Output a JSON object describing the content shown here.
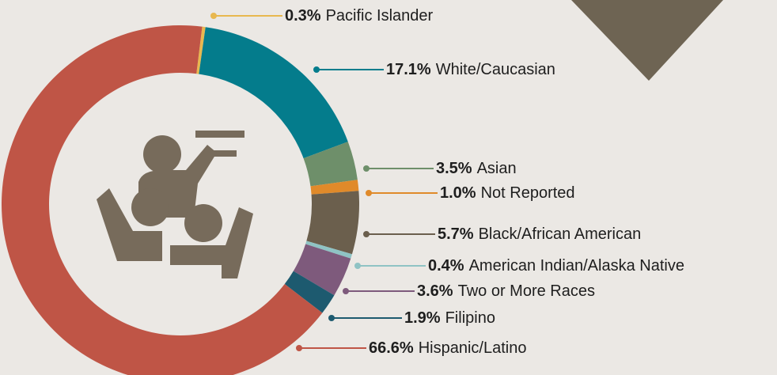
{
  "chart_data": {
    "type": "donut",
    "categories": [
      "Pacific Islander",
      "White/Caucasian",
      "Asian",
      "Not Reported",
      "Black/African American",
      "American Indian/Alaska Native",
      "Two or More Races",
      "Filipino",
      "Hispanic/Latino"
    ],
    "values": [
      0.3,
      17.1,
      3.5,
      1.0,
      5.7,
      0.4,
      3.6,
      1.9,
      66.6
    ],
    "value_labels": [
      "0.3%",
      "17.1%",
      "3.5%",
      "1.0%",
      "5.7%",
      "0.4%",
      "3.6%",
      "1.9%",
      "66.6%"
    ],
    "colors": [
      "#e8b84f",
      "#047c8c",
      "#6e8f6a",
      "#e08a2a",
      "#6b5f4d",
      "#8fc3c4",
      "#7e5a7c",
      "#1d5a6f",
      "#bf5546"
    ]
  }
}
